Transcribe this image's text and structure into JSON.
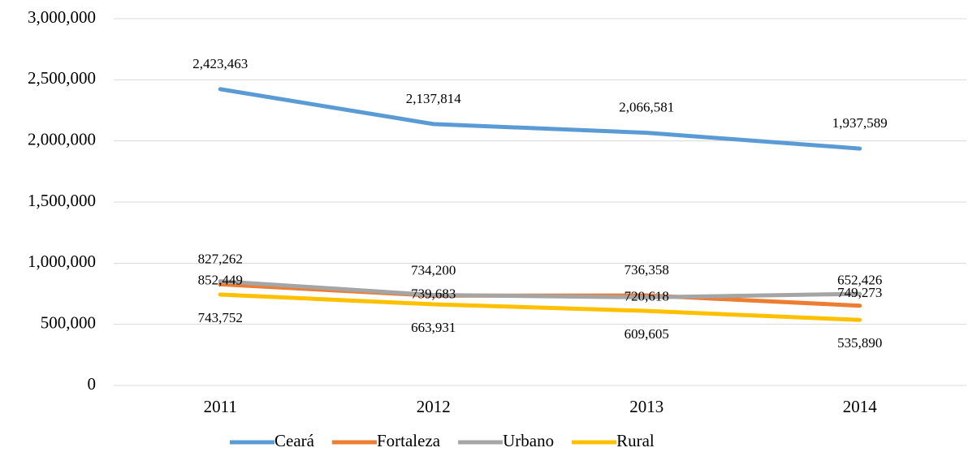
{
  "chart_data": {
    "type": "line",
    "categories": [
      "2011",
      "2012",
      "2013",
      "2014"
    ],
    "series": [
      {
        "name": "Ceará",
        "color": "#5b9bd5",
        "values": [
          2423463,
          2137814,
          2066581,
          1937589
        ],
        "value_labels": [
          "2,423,463",
          "2,137,814",
          "2,066,581",
          "1,937,589"
        ]
      },
      {
        "name": "Fortaleza",
        "color": "#ed7d31",
        "values": [
          827262,
          734200,
          736358,
          652426
        ],
        "value_labels": [
          "827,262",
          "734,200",
          "736,358",
          "652,426"
        ]
      },
      {
        "name": "Urbano",
        "color": "#a5a5a5",
        "values": [
          852449,
          739683,
          720618,
          749273
        ],
        "value_labels": [
          "852,449",
          "739,683",
          "720,618",
          "749,273"
        ]
      },
      {
        "name": "Rural",
        "color": "#ffc000",
        "values": [
          743752,
          663931,
          609605,
          535890
        ],
        "value_labels": [
          "743,752",
          "663,931",
          "609,605",
          "535,890"
        ]
      }
    ],
    "ylim": [
      0,
      3000000
    ],
    "yticks": [
      0,
      {
        "value": 500000,
        "label": "500,000"
      },
      {
        "value": 1000000,
        "label": "1,000,000"
      },
      {
        "value": 1500000,
        "label": "1,500,000"
      },
      {
        "value": 2000000,
        "label": "2,000,000"
      },
      {
        "value": 2500000,
        "label": "2,500,000"
      },
      {
        "value": 3000000,
        "label": "3,000,000"
      }
    ],
    "grid": true,
    "legend": "bottom"
  }
}
